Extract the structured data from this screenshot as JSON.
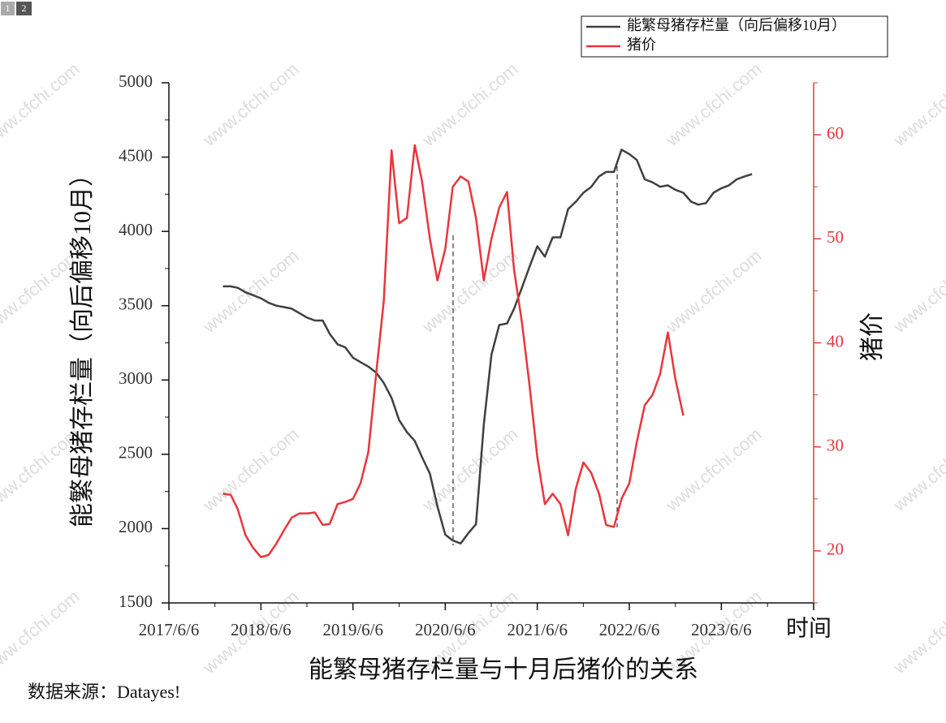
{
  "tabs": [
    "1",
    "2"
  ],
  "watermark": "www.cfchi.com",
  "source_note": "数据来源：Datayes!",
  "chart_data": {
    "type": "line",
    "title": "能繁母猪存栏量与十月后猪价的关系",
    "x_label": "时间",
    "y_label": "能繁母猪存栏量（向后偏移10月）",
    "y2_label": "猪价",
    "x": [
      "2018-01-06",
      "2018-02-06",
      "2018-03-06",
      "2018-04-06",
      "2018-05-06",
      "2018-06-06",
      "2018-07-06",
      "2018-08-06",
      "2018-09-06",
      "2018-10-06",
      "2018-11-06",
      "2018-12-06",
      "2019-01-06",
      "2019-02-06",
      "2019-03-06",
      "2019-04-06",
      "2019-05-06",
      "2019-06-06",
      "2019-07-06",
      "2019-08-06",
      "2019-09-06",
      "2019-10-06",
      "2019-11-06",
      "2019-12-06",
      "2020-01-06",
      "2020-02-06",
      "2020-03-06",
      "2020-04-06",
      "2020-05-06",
      "2020-06-06",
      "2020-07-06",
      "2020-08-06",
      "2020-09-06",
      "2020-10-06",
      "2020-11-06",
      "2020-12-06",
      "2021-01-06",
      "2021-02-06",
      "2021-03-06",
      "2021-04-06",
      "2021-05-06",
      "2021-06-06",
      "2021-07-06",
      "2021-08-06",
      "2021-09-06",
      "2021-10-06",
      "2021-11-06",
      "2021-12-06",
      "2022-01-06",
      "2022-02-06",
      "2022-03-06",
      "2022-04-06",
      "2022-05-06",
      "2022-06-06",
      "2022-07-06",
      "2022-08-06",
      "2022-09-06",
      "2022-10-06",
      "2022-11-06",
      "2022-12-06",
      "2023-01-06",
      "2023-02-06",
      "2023-03-06",
      "2023-04-06",
      "2023-05-06",
      "2023-06-06",
      "2023-07-06",
      "2023-08-06",
      "2023-09-06",
      "2023-10-06"
    ],
    "series": [
      {
        "name": "能繁母猪存栏量（向后偏移10月）",
        "color": "#404040",
        "values": [
          3630,
          3630,
          3620,
          3590,
          3570,
          3550,
          3520,
          3500,
          3490,
          3480,
          3450,
          3420,
          3400,
          3400,
          3310,
          3240,
          3220,
          3150,
          3120,
          3090,
          3050,
          2980,
          2880,
          2730,
          2650,
          2590,
          2480,
          2370,
          2150,
          1960,
          1920,
          1900,
          1970,
          2030,
          2700,
          3170,
          3370,
          3380,
          3480,
          3620,
          3760,
          3900,
          3830,
          3960,
          3960,
          4150,
          4200,
          4260,
          4300,
          4370,
          4400,
          4400,
          4550,
          4520,
          4480,
          4350,
          4330,
          4300,
          4310,
          4280,
          4260,
          4200,
          4180,
          4190,
          4260,
          4290,
          4310,
          4350,
          4370,
          4385
        ]
      },
      {
        "name": "猪价",
        "color": "#e8363c",
        "axis": "y2",
        "values": [
          25.5,
          25.4,
          24,
          21.5,
          20.3,
          19.4,
          19.6,
          20.7,
          22,
          23.2,
          23.6,
          23.6,
          23.7,
          22.5,
          22.6,
          24.5,
          24.7,
          25,
          26.5,
          29.5,
          37,
          44,
          58.5,
          51.5,
          52,
          59,
          55.5,
          50,
          46,
          49,
          55,
          56,
          55.5,
          52,
          46,
          50,
          53,
          54.5,
          47,
          42,
          36,
          29,
          24.5,
          25.5,
          24.5,
          21.5,
          26,
          28.5,
          27.5,
          25.5,
          22.5,
          22.3,
          25,
          26.5,
          30.5,
          34,
          35,
          37,
          41,
          36.5,
          33,
          null,
          null,
          null,
          null,
          null,
          null,
          null,
          null,
          null
        ]
      }
    ],
    "xlim": [
      "2017-06-06",
      "2024-06-06"
    ],
    "xticks": [
      {
        "value": "2017-06-06",
        "label": "2017/6/6"
      },
      {
        "value": "2018-06-06",
        "label": "2018/6/6"
      },
      {
        "value": "2019-06-06",
        "label": "2019/6/6"
      },
      {
        "value": "2020-06-06",
        "label": "2020/6/6"
      },
      {
        "value": "2021-06-06",
        "label": "2021/6/6"
      },
      {
        "value": "2022-06-06",
        "label": "2022/6/6"
      },
      {
        "value": "2023-06-06",
        "label": "2023/6/6"
      }
    ],
    "ylim": [
      1500,
      5000
    ],
    "yticks": [
      1500,
      2000,
      2500,
      3000,
      3500,
      4000,
      4500,
      5000
    ],
    "y2lim": [
      15,
      65
    ],
    "y2ticks": [
      20,
      30,
      40,
      50,
      60
    ],
    "y2_color": "#e8363c",
    "legend": "top-right"
  }
}
